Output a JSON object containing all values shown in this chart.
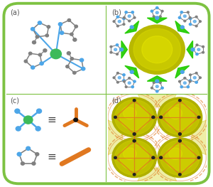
{
  "bg_color": "#ffffff",
  "border_color": "#7dc242",
  "border_lw": 2.5,
  "panel_labels": [
    "(a)",
    "(b)",
    "(c)",
    "(d)"
  ],
  "label_color": "#555555",
  "label_fontsize": 7,
  "zinc_color": "#3dba5a",
  "nitrogen_color": "#4da6e8",
  "carbon_color": "#808080",
  "orange_color": "#e07820",
  "green_bright": "#22cc00",
  "yellow_sphere_color": "#d8d800",
  "yellow_highlight": "#f0f000",
  "dark_node": "#222222"
}
